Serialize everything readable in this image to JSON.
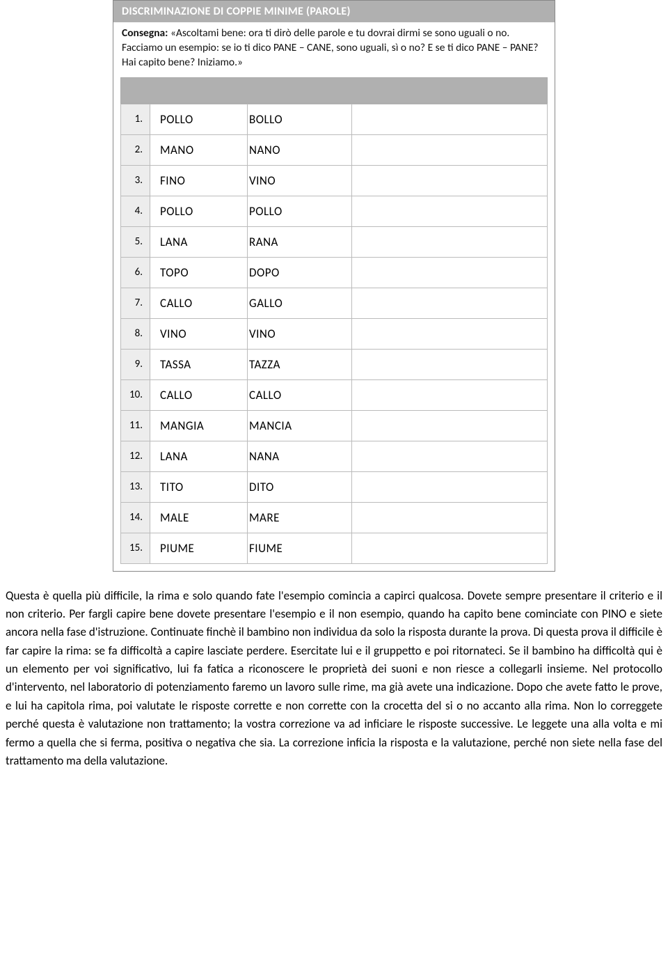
{
  "worksheet": {
    "title": "DISCRIMINAZIONE DI COPPIE MINIME (PAROLE)",
    "instruction_label": "Consegna:",
    "instruction_text": " «Ascoltami bene: ora ti dirò delle parole e tu dovrai dirmi se sono uguali o no. Facciamo un esempio: se io ti dico PANE – CANE, sono uguali, sì o no? E se ti dico PANE – PANE? Hai capito bene? Iniziamo.»",
    "rows": [
      {
        "n": "1.",
        "a": "POLLO",
        "b": "BOLLO"
      },
      {
        "n": "2.",
        "a": "MANO",
        "b": "NANO"
      },
      {
        "n": "3.",
        "a": "FINO",
        "b": "VINO"
      },
      {
        "n": "4.",
        "a": "POLLO",
        "b": "POLLO"
      },
      {
        "n": "5.",
        "a": "LANA",
        "b": "RANA"
      },
      {
        "n": "6.",
        "a": "TOPO",
        "b": "DOPO"
      },
      {
        "n": "7.",
        "a": "CALLO",
        "b": "GALLO"
      },
      {
        "n": "8.",
        "a": "VINO",
        "b": "VINO"
      },
      {
        "n": "9.",
        "a": "TASSA",
        "b": "TAZZA"
      },
      {
        "n": "10.",
        "a": "CALLO",
        "b": "CALLO"
      },
      {
        "n": "11.",
        "a": "MANGIA",
        "b": "MANCIA"
      },
      {
        "n": "12.",
        "a": "LANA",
        "b": "NANA"
      },
      {
        "n": "13.",
        "a": "TITO",
        "b": "DITO"
      },
      {
        "n": "14.",
        "a": "MALE",
        "b": "MARE"
      },
      {
        "n": "15.",
        "a": "PIUME",
        "b": "FIUME"
      }
    ]
  },
  "paragraph": "Questa è quella più difficile, la rima e solo quando fate l'esempio comincia a capirci qualcosa. Dovete sempre presentare il criterio e il non criterio. Per fargli capire bene dovete presentare l'esempio e il non esempio, quando ha capito bene cominciate con PINO e siete ancora nella fase d'istruzione. Continuate finchè il bambino non individua da solo la risposta durante la prova. Di questa prova il difficile è far capire la rima: se fa difficoltà  a capire lasciate perdere. Esercitate lui e il gruppetto e poi ritornateci. Se il bambino ha difficoltà qui è un elemento per voi significativo, lui fa fatica a riconoscere le proprietà dei suoni e non riesce a collegarli insieme. Nel protocollo d'intervento, nel laboratorio di potenziamento faremo un lavoro sulle rime, ma già avete una indicazione. Dopo che avete fatto le prove, e lui ha capitola rima, poi valutate le risposte corrette e non corrette con la crocetta del si o no accanto alla rima. Non lo correggete perché questa è valutazione non trattamento; la vostra correzione va ad inficiare le risposte successive. Le leggete una alla volta e mi fermo a quella che si ferma, positiva o negativa che sia. La correzione inficia la risposta e la valutazione, perché non siete nella fase del trattamento ma della valutazione."
}
